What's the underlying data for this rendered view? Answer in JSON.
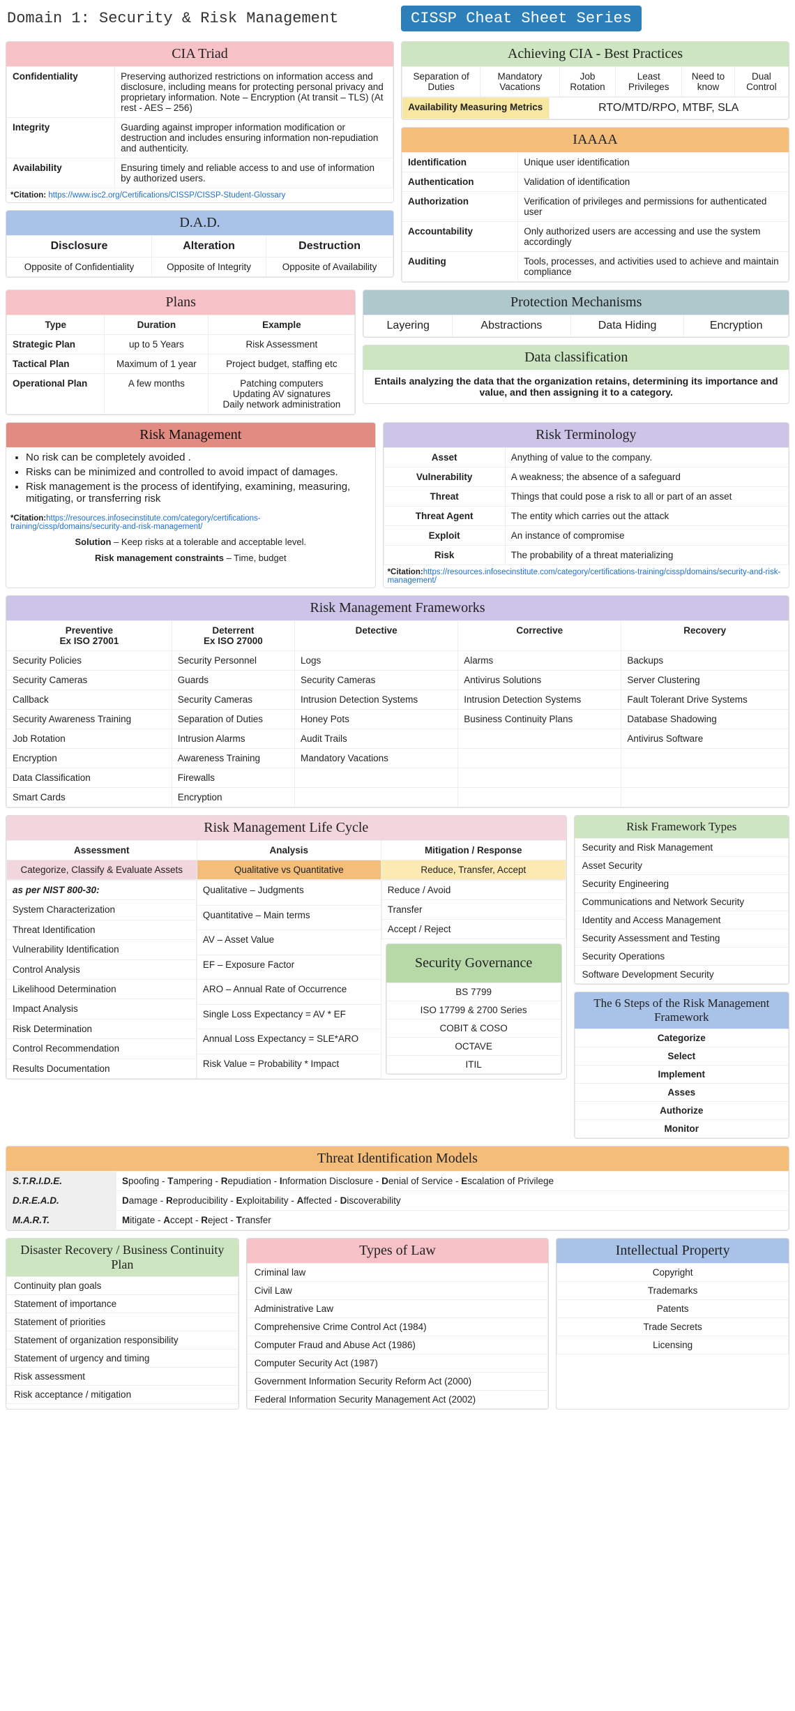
{
  "header": {
    "domain_title": "Domain 1: Security & Risk Management",
    "series_badge": "CISSP Cheat Sheet Series"
  },
  "cia": {
    "title": "CIA Triad",
    "rows": [
      {
        "term": "Confidentiality",
        "def": "Preserving authorized restrictions on information access and disclosure, including means for protecting personal privacy and proprietary information. Note – Encryption (At transit – TLS) (At rest - AES – 256)"
      },
      {
        "term": "Integrity",
        "def": "Guarding against improper information modification or destruction and includes ensuring information non-repudiation and authenticity."
      },
      {
        "term": "Availability",
        "def": "Ensuring timely and reliable access to and use of information by authorized users."
      }
    ],
    "citation_label": "*Citation:",
    "citation_url": "https://www.isc2.org/Certifications/CISSP/CISSP-Student-Glossary"
  },
  "dad": {
    "title": "D.A.D.",
    "headers": [
      "Disclosure",
      "Alteration",
      "Destruction"
    ],
    "row": [
      "Opposite of Confidentiality",
      "Opposite of Integrity",
      "Opposite of Availability"
    ]
  },
  "best": {
    "title": "Achieving CIA - Best Practices",
    "cells": [
      "Separation of Duties",
      "Mandatory Vacations",
      "Job Rotation",
      "Least Privileges",
      "Need to know",
      "Dual Control"
    ],
    "metric_label": "Availability Measuring Metrics",
    "metric_value": "RTO/MTD/RPO, MTBF, SLA"
  },
  "iaaaa": {
    "title": "IAAAA",
    "rows": [
      {
        "t": "Identification",
        "d": "Unique user identification"
      },
      {
        "t": "Authentication",
        "d": "Validation of identification"
      },
      {
        "t": "Authorization",
        "d": "Verification of privileges and permissions for authenticated user"
      },
      {
        "t": "Accountability",
        "d": "Only authorized users are accessing and use the system accordingly"
      },
      {
        "t": "Auditing",
        "d": "Tools, processes, and activities used to achieve and maintain compliance"
      }
    ]
  },
  "plans": {
    "title": "Plans",
    "headers": [
      "Type",
      "Duration",
      "Example"
    ],
    "rows": [
      [
        "Strategic Plan",
        "up to 5 Years",
        "Risk Assessment"
      ],
      [
        "Tactical Plan",
        "Maximum of 1 year",
        "Project budget, staffing etc"
      ],
      [
        "Operational Plan",
        "A few months",
        "Patching computers\nUpdating AV signatures\nDaily network administration"
      ]
    ]
  },
  "protection": {
    "title": "Protection Mechanisms",
    "cells": [
      "Layering",
      "Abstractions",
      "Data Hiding",
      "Encryption"
    ]
  },
  "dataclass": {
    "title": "Data classification",
    "desc": "Entails analyzing the data that the organization retains, determining its importance and value, and then assigning it to a category."
  },
  "riskmgmt": {
    "title": "Risk Management",
    "bullets": [
      "No risk can be completely avoided .",
      "Risks can be minimized and controlled to avoid impact of damages.",
      "Risk management is the process of identifying, examining, measuring, mitigating, or transferring risk"
    ],
    "citation_label": "*Citation:",
    "citation_url": "https://resources.infosecinstitute.com/category/certifications-training/cissp/domains/security-and-risk-management/",
    "solution_label": "Solution",
    "solution_text": " – Keep risks at a tolerable and acceptable level.",
    "constraints_label": "Risk management constraints",
    "constraints_text": " – Time, budget"
  },
  "riskterm": {
    "title": "Risk Terminology",
    "rows": [
      {
        "t": "Asset",
        "d": "Anything of value to the company."
      },
      {
        "t": "Vulnerability",
        "d": "A weakness; the absence of a safeguard"
      },
      {
        "t": "Threat",
        "d": "Things that could pose a risk to all or part of an asset"
      },
      {
        "t": "Threat Agent",
        "d": "The entity which carries out the attack"
      },
      {
        "t": "Exploit",
        "d": "An instance of compromise"
      },
      {
        "t": "Risk",
        "d": "The probability of a threat materializing"
      }
    ],
    "citation_label": "*Citation:",
    "citation_url": "https://resources.infosecinstitute.com/category/certifications-training/cissp/domains/security-and-risk-management/"
  },
  "frameworks": {
    "title": "Risk Management Frameworks",
    "headers": [
      "Preventive\nEx ISO 27001",
      "Deterrent\nEx ISO 27000",
      "Detective",
      "Corrective",
      "Recovery"
    ],
    "rows": [
      [
        "Security Policies",
        "Security Personnel",
        "Logs",
        "Alarms",
        "Backups"
      ],
      [
        "Security Cameras",
        "Guards",
        "Security Cameras",
        "Antivirus Solutions",
        "Server Clustering"
      ],
      [
        "Callback",
        "Security Cameras",
        "Intrusion Detection Systems",
        "Intrusion Detection Systems",
        "Fault Tolerant Drive Systems"
      ],
      [
        "Security Awareness Training",
        "Separation of Duties",
        "Honey Pots",
        "Business Continuity Plans",
        "Database Shadowing"
      ],
      [
        "Job Rotation",
        "Intrusion Alarms",
        "Audit Trails",
        "",
        "Antivirus Software"
      ],
      [
        "Encryption",
        "Awareness Training",
        "Mandatory Vacations",
        "",
        ""
      ],
      [
        "Data Classification",
        "Firewalls",
        "",
        "",
        ""
      ],
      [
        "Smart Cards",
        "Encryption",
        "",
        "",
        ""
      ]
    ]
  },
  "ftypes": {
    "title": "Risk Framework Types",
    "items": [
      "Security and Risk Management",
      "Asset Security",
      "Security Engineering",
      "Communications and Network Security",
      "Identity and Access Management",
      "Security Assessment and Testing",
      "Security Operations",
      "Software Development Security"
    ]
  },
  "sixsteps": {
    "title": "The 6 Steps of the Risk Management Framework",
    "items": [
      "Categorize",
      "Select",
      "Implement",
      "Asses",
      "Authorize",
      "Monitor"
    ]
  },
  "lifecycle": {
    "title": "Risk Management Life Cycle",
    "headers": [
      "Assessment",
      "Analysis",
      "Mitigation / Response"
    ],
    "sub": [
      "Categorize, Classify & Evaluate Assets",
      "Qualitative vs Quantitative",
      "Reduce, Transfer, Accept"
    ],
    "colA": [
      "as per NIST 800-30:",
      "System Characterization",
      "Threat Identification",
      "Vulnerability Identification",
      "Control Analysis",
      "Likelihood Determination",
      "Impact Analysis",
      "Risk Determination",
      "Control Recommendation",
      "Results Documentation"
    ],
    "colB": [
      "Qualitative – Judgments",
      "Quantitative – Main terms",
      "AV – Asset Value",
      "EF – Exposure Factor",
      "ARO – Annual Rate of Occurrence",
      "Single Loss Expectancy = AV * EF",
      "Annual Loss Expectancy = SLE*ARO",
      "Risk Value = Probability * Impact"
    ],
    "colC": [
      "Reduce / Avoid",
      "Transfer",
      "Accept / Reject"
    ]
  },
  "governance": {
    "title": "Security Governance",
    "items": [
      "BS 7799",
      "ISO 17799 & 2700 Series",
      "COBIT & COSO",
      "OCTAVE",
      "ITIL"
    ]
  },
  "threatmodels": {
    "title": "Threat Identification Models",
    "rows": [
      {
        "t": "S.T.R.I.D.E.",
        "d": "Spoofing - Tampering - Repudiation - Information Disclosure - Denial of Service - Escalation of Privilege",
        "bold": [
          "S",
          "T",
          "R",
          "D",
          "E"
        ]
      },
      {
        "t": "D.R.E.A.D.",
        "d": "Damage - Reproducibility - Exploitability - Affected - Discoverability",
        "bold": [
          "D",
          "R",
          "E",
          "A",
          "D"
        ]
      },
      {
        "t": "M.A.R.T.",
        "d": "Mitigate - Accept - Reject - Transfer",
        "bold": [
          "M",
          "A",
          "R",
          "T"
        ]
      }
    ]
  },
  "drbcp": {
    "title": "Disaster Recovery / Business Continuity Plan",
    "items": [
      "Continuity plan goals",
      "Statement of importance",
      "Statement of priorities",
      "Statement of organization responsibility",
      "Statement of urgency and timing",
      "Risk assessment",
      "Risk acceptance / mitigation"
    ]
  },
  "law": {
    "title": "Types of Law",
    "items": [
      "Criminal law",
      "Civil Law",
      "Administrative Law",
      "Comprehensive Crime Control Act (1984)",
      "Computer Fraud and Abuse Act (1986)",
      "Computer Security Act (1987)",
      "Government Information Security Reform Act (2000)",
      "Federal Information Security Management Act (2002)"
    ]
  },
  "ip": {
    "title": "Intellectual Property",
    "items": [
      "Copyright",
      "Trademarks",
      "Patents",
      "Trade Secrets",
      "Licensing"
    ]
  }
}
